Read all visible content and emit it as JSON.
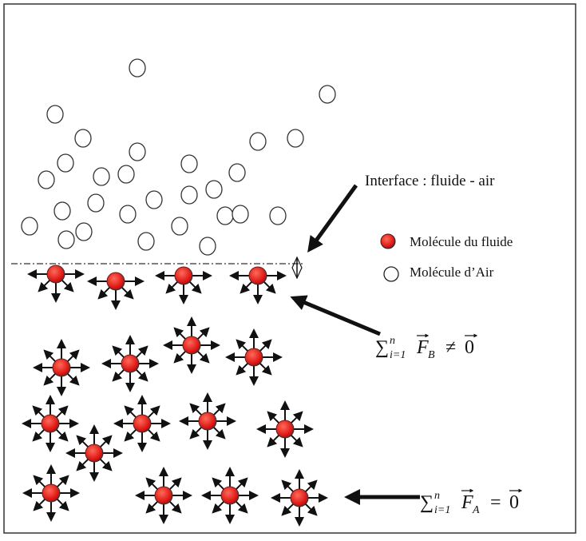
{
  "interface_label": "Interface : fluide - air",
  "legend": {
    "fluid": "Molécule du fluide",
    "air": "Molécule d’Air"
  },
  "formula_surface": {
    "sum": "∑",
    "upper": "n",
    "lower": "i=1",
    "vector": "F",
    "subscript": "B",
    "relation": "≠",
    "result": "0"
  },
  "formula_bulk": {
    "sum": "∑",
    "upper": "n",
    "lower": "i=1",
    "vector": "F",
    "subscript": "A",
    "relation": "=",
    "result": "0"
  }
}
